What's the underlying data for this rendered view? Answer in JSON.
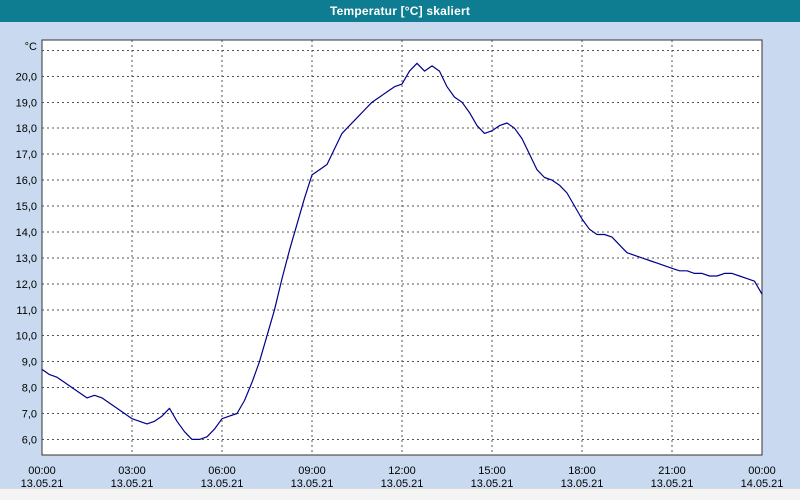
{
  "title": "Temperatur [°C] skaliert",
  "colors": {
    "titlebar_bg": "#0e7c91",
    "titlebar_text": "#ffffff",
    "background": "#c9daf0",
    "plot_bg": "#ffffff",
    "grid": "#555555",
    "border": "#333333",
    "axis_text": "#000000",
    "line": "#00008b",
    "footer_bg": "#f4f4f4"
  },
  "chart_data": {
    "type": "line",
    "title": "Temperatur [°C] skaliert",
    "ylabel": "°C",
    "xlabel": "",
    "grid": "dashed-both-axes",
    "legend": "none",
    "ylim": [
      5.4,
      21.4
    ],
    "xlim_hours": [
      0,
      24
    ],
    "y_ticks": [
      {
        "value": 6,
        "label": "6,0"
      },
      {
        "value": 7,
        "label": "7,0"
      },
      {
        "value": 8,
        "label": "8,0"
      },
      {
        "value": 9,
        "label": "9,0"
      },
      {
        "value": 10,
        "label": "10,0"
      },
      {
        "value": 11,
        "label": "11,0"
      },
      {
        "value": 12,
        "label": "12,0"
      },
      {
        "value": 13,
        "label": "13,0"
      },
      {
        "value": 14,
        "label": "14,0"
      },
      {
        "value": 15,
        "label": "15,0"
      },
      {
        "value": 16,
        "label": "16,0"
      },
      {
        "value": 17,
        "label": "17,0"
      },
      {
        "value": 18,
        "label": "18,0"
      },
      {
        "value": 19,
        "label": "19,0"
      },
      {
        "value": 20,
        "label": "20,0"
      }
    ],
    "extra_gridlines": [
      21
    ],
    "x_ticks": [
      {
        "hour": 0,
        "time": "00:00",
        "date": "13.05.21"
      },
      {
        "hour": 3,
        "time": "03:00",
        "date": "13.05.21"
      },
      {
        "hour": 6,
        "time": "06:00",
        "date": "13.05.21"
      },
      {
        "hour": 9,
        "time": "09:00",
        "date": "13.05.21"
      },
      {
        "hour": 12,
        "time": "12:00",
        "date": "13.05.21"
      },
      {
        "hour": 15,
        "time": "15:00",
        "date": "13.05.21"
      },
      {
        "hour": 18,
        "time": "18:00",
        "date": "13.05.21"
      },
      {
        "hour": 21,
        "time": "21:00",
        "date": "13.05.21"
      },
      {
        "hour": 24,
        "time": "00:00",
        "date": "14.05.21"
      }
    ],
    "series": [
      {
        "name": "Temperatur [°C]",
        "x_start_hours": 0,
        "x_step_hours": 0.25,
        "values": [
          8.7,
          8.5,
          8.4,
          8.2,
          8.0,
          7.8,
          7.6,
          7.7,
          7.6,
          7.4,
          7.2,
          7.0,
          6.8,
          6.7,
          6.6,
          6.7,
          6.9,
          7.2,
          6.7,
          6.3,
          6.0,
          6.0,
          6.1,
          6.4,
          6.8,
          6.9,
          7.0,
          7.5,
          8.2,
          9.0,
          10.0,
          11.0,
          12.2,
          13.3,
          14.3,
          15.3,
          16.2,
          16.4,
          16.6,
          17.2,
          17.8,
          18.1,
          18.4,
          18.7,
          19.0,
          19.2,
          19.4,
          19.6,
          19.7,
          20.2,
          20.5,
          20.2,
          20.4,
          20.2,
          19.6,
          19.2,
          19.0,
          18.6,
          18.1,
          17.8,
          17.9,
          18.1,
          18.2,
          18.0,
          17.6,
          17.0,
          16.4,
          16.1,
          16.0,
          15.8,
          15.5,
          15.0,
          14.5,
          14.1,
          13.9,
          13.9,
          13.8,
          13.5,
          13.2,
          13.1,
          13.0,
          12.9,
          12.8,
          12.7,
          12.6,
          12.5,
          12.5,
          12.4,
          12.4,
          12.3,
          12.3,
          12.4,
          12.4,
          12.3,
          12.2,
          12.1,
          11.6
        ]
      }
    ]
  }
}
